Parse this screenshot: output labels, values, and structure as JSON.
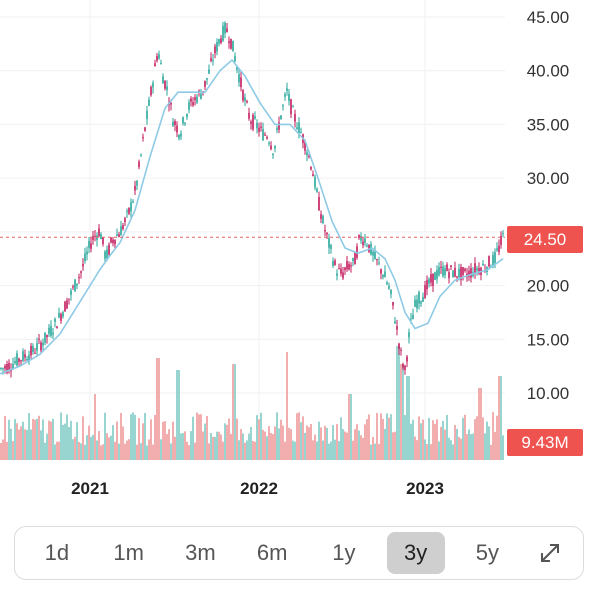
{
  "chart_data": {
    "type": "candlestick",
    "y_ticks": [
      "45.00",
      "40.00",
      "35.00",
      "30.00",
      "25.00",
      "20.00",
      "15.00",
      "10.00"
    ],
    "x_ticks": [
      "2021",
      "2022",
      "2023"
    ],
    "ylim": [
      8,
      45
    ],
    "grid": true,
    "price_tag": "24.50",
    "current_price": 24.5,
    "volume_tag": "9.43M",
    "colors": {
      "up": "#26a69a",
      "down": "#ef5350",
      "ma": "#8ecae6",
      "tag": "#ef5350"
    },
    "price_path": [
      [
        0,
        12.2
      ],
      [
        10,
        12.6
      ],
      [
        20,
        13.2
      ],
      [
        32,
        13.8
      ],
      [
        45,
        15.0
      ],
      [
        58,
        16.8
      ],
      [
        70,
        19.0
      ],
      [
        82,
        21.5
      ],
      [
        92,
        24.3
      ],
      [
        100,
        25.2
      ],
      [
        106,
        22.5
      ],
      [
        112,
        24.2
      ],
      [
        120,
        25.0
      ],
      [
        128,
        26.5
      ],
      [
        136,
        29.0
      ],
      [
        144,
        34.0
      ],
      [
        152,
        38.5
      ],
      [
        158,
        42.0
      ],
      [
        163,
        39.5
      ],
      [
        168,
        38.0
      ],
      [
        173,
        35.5
      ],
      [
        180,
        34.2
      ],
      [
        188,
        36.5
      ],
      [
        196,
        37.5
      ],
      [
        202,
        38.0
      ],
      [
        208,
        39.5
      ],
      [
        214,
        41.5
      ],
      [
        220,
        43.0
      ],
      [
        226,
        44.0
      ],
      [
        232,
        42.5
      ],
      [
        238,
        40.0
      ],
      [
        244,
        37.5
      ],
      [
        250,
        35.5
      ],
      [
        256,
        35.0
      ],
      [
        262,
        34.2
      ],
      [
        268,
        34.0
      ],
      [
        274,
        32.5
      ],
      [
        280,
        35.5
      ],
      [
        287,
        38.0
      ],
      [
        293,
        36.0
      ],
      [
        300,
        34.5
      ],
      [
        306,
        33.0
      ],
      [
        312,
        31.0
      ],
      [
        318,
        28.0
      ],
      [
        324,
        25.5
      ],
      [
        330,
        23.5
      ],
      [
        336,
        21.5
      ],
      [
        342,
        21.0
      ],
      [
        348,
        21.8
      ],
      [
        354,
        22.0
      ],
      [
        360,
        24.5
      ],
      [
        366,
        24.3
      ],
      [
        372,
        23.0
      ],
      [
        378,
        22.0
      ],
      [
        384,
        21.0
      ],
      [
        390,
        19.5
      ],
      [
        396,
        16.5
      ],
      [
        401,
        13.5
      ],
      [
        405,
        12.0
      ],
      [
        410,
        16.0
      ],
      [
        416,
        18.5
      ],
      [
        422,
        19.0
      ],
      [
        428,
        20.0
      ],
      [
        436,
        21.0
      ],
      [
        444,
        21.5
      ],
      [
        455,
        21.2
      ],
      [
        465,
        21.0
      ],
      [
        475,
        21.5
      ],
      [
        485,
        21.8
      ],
      [
        495,
        22.5
      ],
      [
        503,
        24.5
      ]
    ],
    "ma_path": [
      [
        0,
        11.8
      ],
      [
        20,
        12.5
      ],
      [
        40,
        13.6
      ],
      [
        60,
        15.5
      ],
      [
        80,
        18.5
      ],
      [
        100,
        21.5
      ],
      [
        110,
        22.8
      ],
      [
        120,
        24.0
      ],
      [
        135,
        27.0
      ],
      [
        150,
        32.0
      ],
      [
        165,
        36.5
      ],
      [
        178,
        38.0
      ],
      [
        190,
        38.0
      ],
      [
        205,
        38.0
      ],
      [
        220,
        40.0
      ],
      [
        232,
        41.0
      ],
      [
        245,
        39.5
      ],
      [
        260,
        37.0
      ],
      [
        275,
        35.0
      ],
      [
        290,
        35.0
      ],
      [
        305,
        33.5
      ],
      [
        318,
        30.0
      ],
      [
        332,
        26.0
      ],
      [
        345,
        23.5
      ],
      [
        358,
        23.0
      ],
      [
        372,
        23.5
      ],
      [
        385,
        22.5
      ],
      [
        395,
        20.5
      ],
      [
        405,
        17.5
      ],
      [
        415,
        16.0
      ],
      [
        428,
        16.5
      ],
      [
        440,
        19.0
      ],
      [
        455,
        20.5
      ],
      [
        470,
        21.0
      ],
      [
        488,
        21.5
      ],
      [
        503,
        22.5
      ]
    ],
    "volume_spikes": [
      [
        95,
        0.55
      ],
      [
        158,
        0.85
      ],
      [
        178,
        0.75
      ],
      [
        234,
        0.8
      ],
      [
        287,
        0.9
      ],
      [
        350,
        0.55
      ],
      [
        398,
        0.95
      ],
      [
        402,
        0.8
      ],
      [
        408,
        0.7
      ],
      [
        480,
        0.6
      ],
      [
        500,
        0.7
      ]
    ]
  },
  "time_range": {
    "options": [
      "1d",
      "1m",
      "3m",
      "6m",
      "1y",
      "3y",
      "5y"
    ],
    "selected": "3y",
    "expand_icon": "expand-diagonal-icon"
  }
}
